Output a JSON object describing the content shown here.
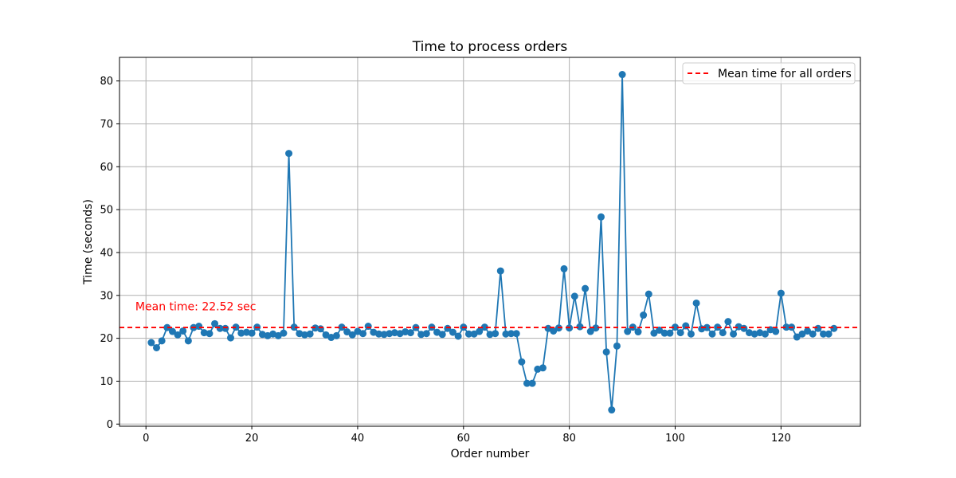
{
  "chart_data": {
    "type": "line",
    "title": "Time to process orders",
    "xlabel": "Order number",
    "ylabel": "Time (seconds)",
    "xlim": [
      -5,
      135
    ],
    "ylim": [
      -0.5,
      85.5
    ],
    "xticks": [
      0,
      20,
      40,
      60,
      80,
      100,
      120
    ],
    "yticks": [
      0,
      10,
      20,
      30,
      40,
      50,
      60,
      70,
      80
    ],
    "grid": true,
    "legend_position": "top-right",
    "series": [
      {
        "name": "",
        "color": "#1f77b4",
        "marker": "circle",
        "x": [
          1,
          2,
          3,
          4,
          5,
          6,
          7,
          8,
          9,
          10,
          11,
          12,
          13,
          14,
          15,
          16,
          17,
          18,
          19,
          20,
          21,
          22,
          23,
          24,
          25,
          26,
          27,
          28,
          29,
          30,
          31,
          32,
          33,
          34,
          35,
          36,
          37,
          38,
          39,
          40,
          41,
          42,
          43,
          44,
          45,
          46,
          47,
          48,
          49,
          50,
          51,
          52,
          53,
          54,
          55,
          56,
          57,
          58,
          59,
          60,
          61,
          62,
          63,
          64,
          65,
          66,
          67,
          68,
          69,
          70,
          71,
          72,
          73,
          74,
          75,
          76,
          77,
          78,
          79,
          80,
          81,
          82,
          83,
          84,
          85,
          86,
          87,
          88,
          89,
          90,
          91,
          92,
          93,
          94,
          95,
          96,
          97,
          98,
          99,
          100,
          101,
          102,
          103,
          104,
          105,
          106,
          107,
          108,
          109,
          110,
          111,
          112,
          113,
          114,
          115,
          116,
          117,
          118,
          119,
          120,
          121,
          122,
          123,
          124,
          125,
          126,
          127,
          128,
          129,
          130
        ],
        "y": [
          19.0,
          17.8,
          19.4,
          22.5,
          21.6,
          20.8,
          21.7,
          19.4,
          22.5,
          22.8,
          21.3,
          21.1,
          23.4,
          22.3,
          22.3,
          20.1,
          22.6,
          21.2,
          21.4,
          21.2,
          22.6,
          20.9,
          20.6,
          21.0,
          20.6,
          21.2,
          63.1,
          22.6,
          21.1,
          20.8,
          21.0,
          22.4,
          22.2,
          20.8,
          20.2,
          20.6,
          22.6,
          21.5,
          20.8,
          21.6,
          21.1,
          22.8,
          21.4,
          21.0,
          20.9,
          21.1,
          21.3,
          21.1,
          21.5,
          21.3,
          22.5,
          20.9,
          21.1,
          22.6,
          21.4,
          20.9,
          22.3,
          21.4,
          20.5,
          22.6,
          21.0,
          21.0,
          21.6,
          22.6,
          20.9,
          21.1,
          35.7,
          21.0,
          21.1,
          21.1,
          14.5,
          9.5,
          9.5,
          12.8,
          13.1,
          22.3,
          21.7,
          22.4,
          36.2,
          22.4,
          29.8,
          22.7,
          31.6,
          21.6,
          22.4,
          48.3,
          16.8,
          3.3,
          18.2,
          81.5,
          21.6,
          22.6,
          21.5,
          25.4,
          30.3,
          21.2,
          21.9,
          21.2,
          21.2,
          22.6,
          21.3,
          22.9,
          21.0,
          28.2,
          22.2,
          22.5,
          21.0,
          22.6,
          21.3,
          23.9,
          21.0,
          22.7,
          22.3,
          21.3,
          21.0,
          21.3,
          21.0,
          22.0,
          21.6,
          30.5,
          22.6,
          22.6,
          20.3,
          21.0,
          21.7,
          21.0,
          22.3,
          21.0,
          21.0,
          22.3
        ]
      }
    ],
    "reference_line": {
      "y": 22.52,
      "color": "#ff0000",
      "style": "dashed",
      "legend_label": "Mean time for all orders"
    },
    "annotation": {
      "text": "Mean time: 22.52 sec",
      "x": -2,
      "y": 26.5,
      "color": "#ff0000"
    }
  }
}
